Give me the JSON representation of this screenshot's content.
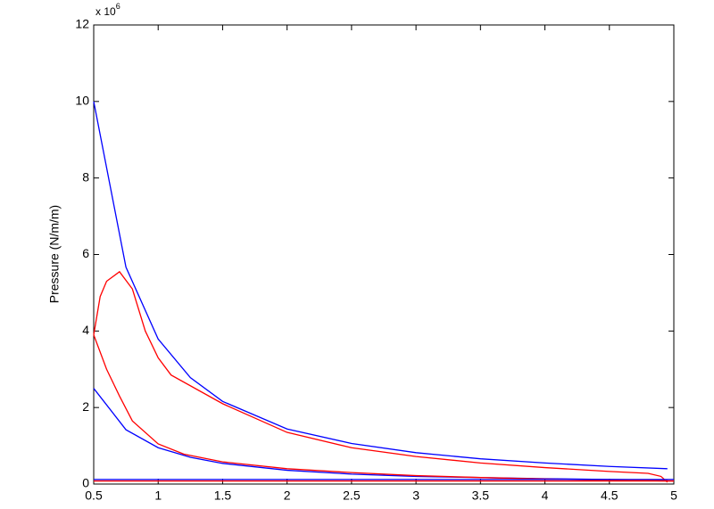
{
  "chart_data": {
    "type": "line",
    "ylabel": "Pressure (N/m/m)",
    "exponent_label": {
      "base": "x 10",
      "power": "6"
    },
    "xlim": [
      0.5,
      5
    ],
    "xticks": [
      0.5,
      1,
      1.5,
      2,
      2.5,
      3,
      3.5,
      4,
      4.5,
      5
    ],
    "ylim": [
      0,
      12
    ],
    "yticks": [
      0,
      2,
      4,
      6,
      8,
      10,
      12
    ],
    "grid": false,
    "series": [
      {
        "color": "#0000ff",
        "x": [
          0.5,
          0.75,
          1,
          1.25,
          1.5,
          2,
          2.5,
          3,
          3.5,
          4,
          4.5,
          4.95
        ],
        "values": [
          10,
          5.67,
          3.79,
          2.78,
          2.16,
          1.44,
          1.06,
          0.82,
          0.66,
          0.55,
          0.46,
          0.4
        ]
      },
      {
        "color": "#0000ff",
        "x": [
          0.5,
          0.75,
          1,
          1.25,
          1.5,
          2,
          2.5,
          3,
          3.5,
          4,
          4.5,
          4.95
        ],
        "values": [
          2.5,
          1.42,
          0.95,
          0.7,
          0.54,
          0.36,
          0.26,
          0.2,
          0.17,
          0.14,
          0.12,
          0.1
        ]
      },
      {
        "color": "#ff0000",
        "x": [
          0.5,
          0.55,
          0.6,
          0.7,
          0.8,
          0.9,
          1,
          1.1,
          1.5,
          2,
          2.5,
          3,
          3.5,
          4,
          4.5,
          4.8,
          4.9,
          4.95
        ],
        "values": [
          3.9,
          4.9,
          5.3,
          5.55,
          5.1,
          4.0,
          3.3,
          2.85,
          2.1,
          1.35,
          0.95,
          0.72,
          0.55,
          0.43,
          0.33,
          0.28,
          0.2,
          0.05
        ]
      },
      {
        "color": "#ff0000",
        "x": [
          0.5,
          0.6,
          0.7,
          0.8,
          1,
          1.2,
          1.5,
          2,
          2.5,
          3,
          3.5,
          4,
          4.5,
          5
        ],
        "values": [
          3.9,
          3.0,
          2.3,
          1.65,
          1.05,
          0.78,
          0.58,
          0.4,
          0.3,
          0.22,
          0.17,
          0.13,
          0.1,
          0.08
        ]
      },
      {
        "color": "#0000ff",
        "x": [
          0.5,
          5
        ],
        "values": [
          0.12,
          0.12
        ]
      },
      {
        "color": "#ff0000",
        "x": [
          0.5,
          5
        ],
        "values": [
          0.08,
          0.08
        ]
      }
    ]
  }
}
